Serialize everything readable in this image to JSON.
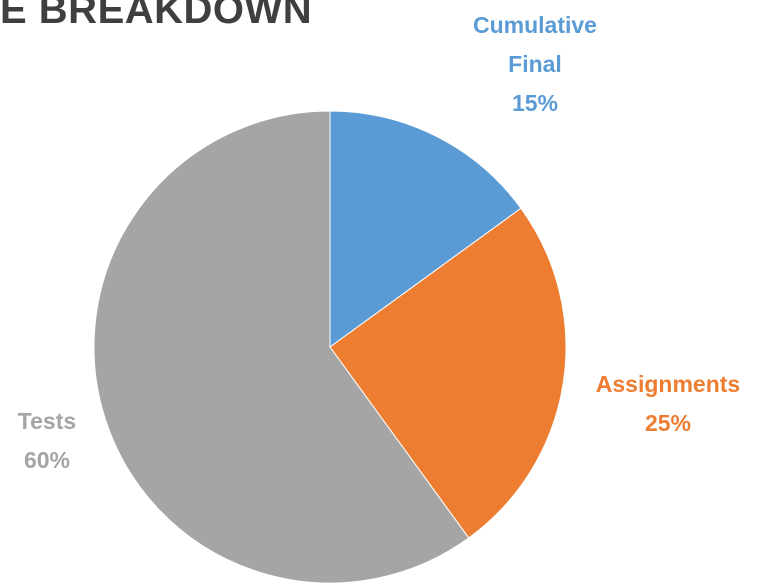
{
  "chart_data": {
    "type": "pie",
    "title": "E BREAKDOWN",
    "slices": [
      {
        "label_lines": [
          "Cumulative",
          "Final"
        ],
        "value": 15,
        "value_label": "15%",
        "color": "#5B9BD5"
      },
      {
        "label_lines": [
          "Assignments"
        ],
        "value": 25,
        "value_label": "25%",
        "color": "#ED7D31"
      },
      {
        "label_lines": [
          "Tests"
        ],
        "value": 60,
        "value_label": "60%",
        "color": "#A5A5A5"
      }
    ],
    "start_angle": "12 o'clock",
    "direction": "clockwise",
    "legend": "none"
  }
}
